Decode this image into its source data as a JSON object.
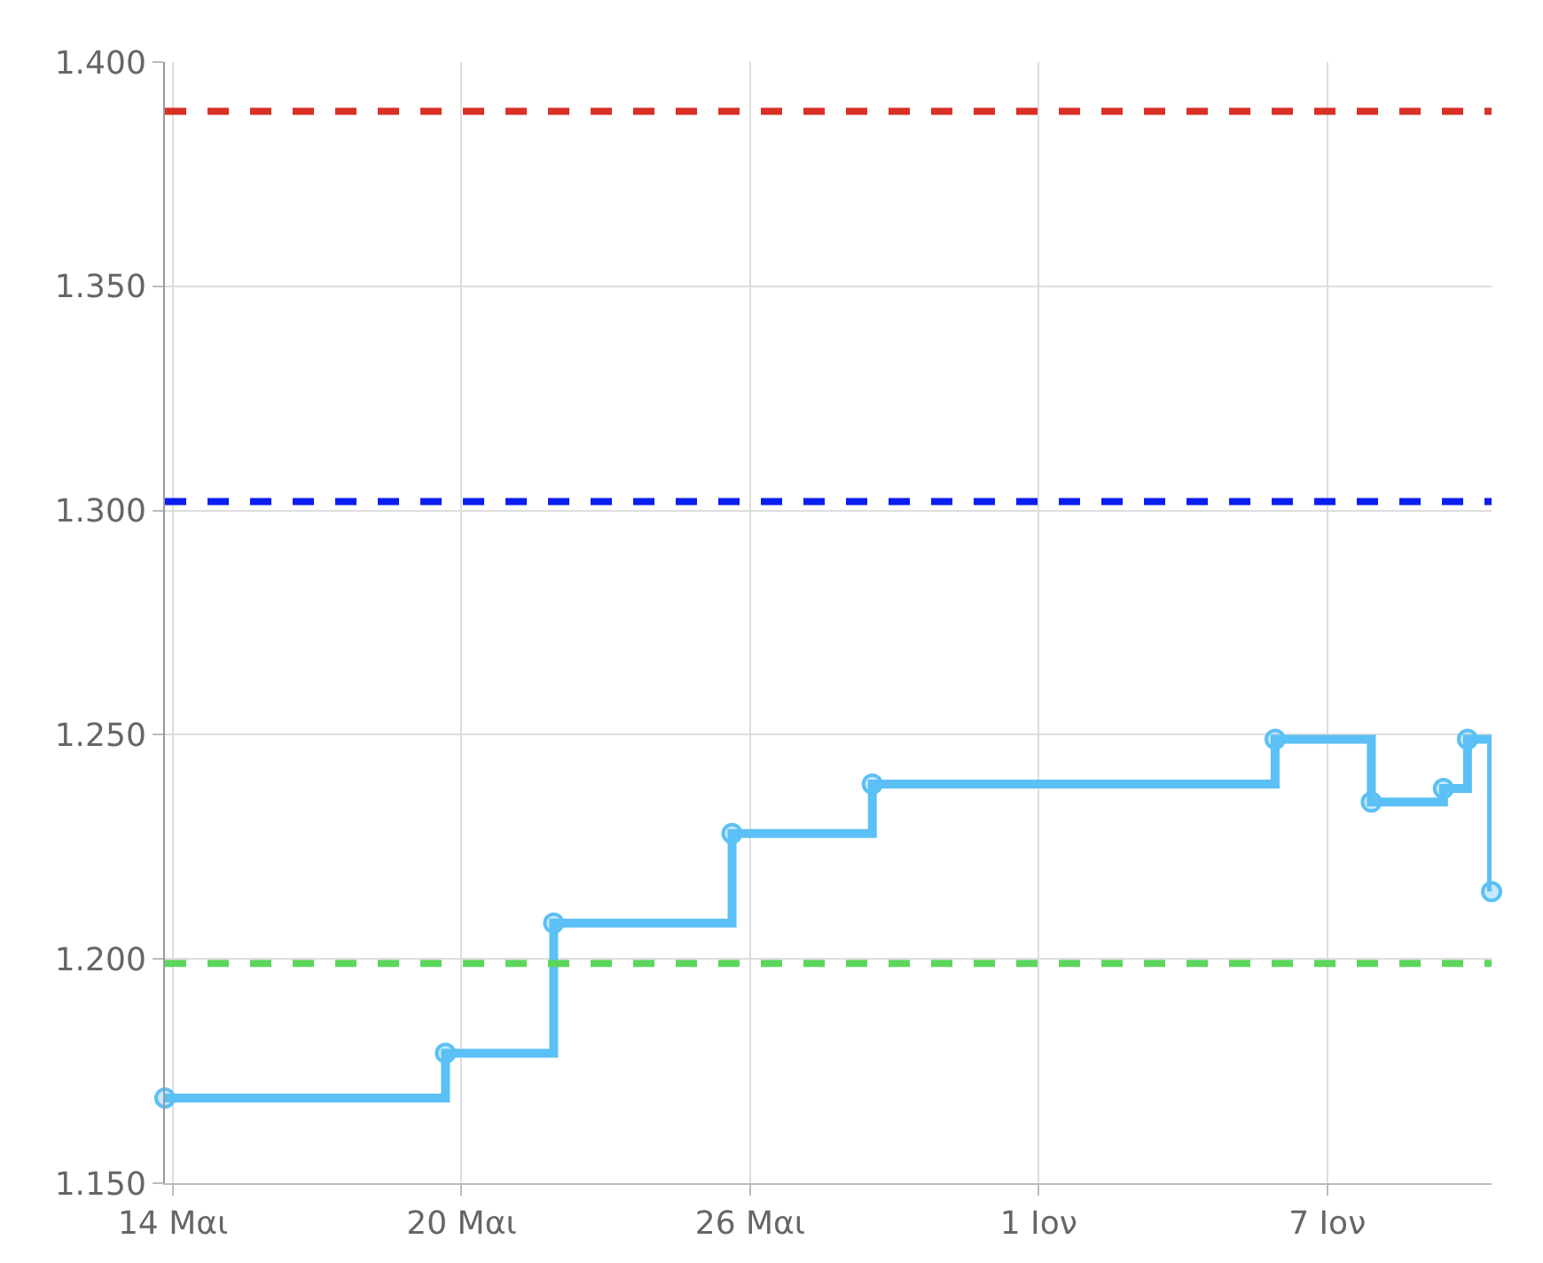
{
  "chart_data": {
    "type": "step",
    "x": [
      "--05-13T20:00",
      "--05-19T16:00",
      "--05-21T22:00",
      "--05-25T15:00",
      "--05-28T13:00",
      "--06-05T22:00",
      "--06-07T22:00",
      "--06-09T10:00",
      "--06-09T22:00",
      "--06-10T10:00"
    ],
    "series": [
      {
        "color": "#5bc0f5",
        "values": [
          1.169,
          1.179,
          1.208,
          1.228,
          1.239,
          1.249,
          1.235,
          1.238,
          1.249,
          1.215
        ]
      }
    ],
    "xlim": [
      "--05-13T20:00",
      "--06-10T10:00"
    ],
    "xticks": [
      {
        "value": "--05-14",
        "label": "14 Μαι"
      },
      {
        "value": "--05-20",
        "label": "20 Μαι"
      },
      {
        "value": "--05-26",
        "label": "26 Μαι"
      },
      {
        "value": "--06-01",
        "label": "1 Ιον"
      },
      {
        "value": "--06-07",
        "label": "7 Ιον"
      }
    ],
    "ylim": [
      1.15,
      1.4
    ],
    "yticks": [
      {
        "value": 1.15,
        "label": "1.150"
      },
      {
        "value": 1.2,
        "label": "1.200"
      },
      {
        "value": 1.25,
        "label": "1.250"
      },
      {
        "value": 1.3,
        "label": "1.300"
      },
      {
        "value": 1.35,
        "label": "1.350"
      },
      {
        "value": 1.4,
        "label": "1.400"
      }
    ],
    "ref_lines": [
      {
        "axis": "y",
        "value": 1.389,
        "color": "#d93025",
        "line_style": "dashed"
      },
      {
        "axis": "y",
        "value": 1.302,
        "color": "#0a1ef0",
        "line_style": "dashed"
      },
      {
        "axis": "y",
        "value": 1.199,
        "color": "#5cd65c",
        "line_style": "dashed"
      }
    ],
    "grid": true,
    "marker": "circle",
    "line_style": "solid"
  }
}
